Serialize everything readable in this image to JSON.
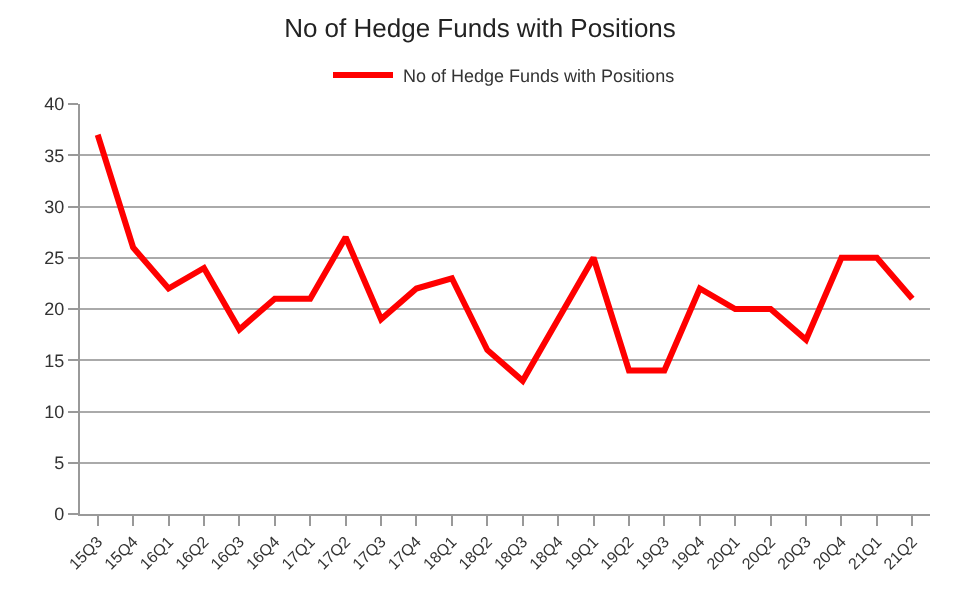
{
  "chart_data": {
    "type": "line",
    "title": "No of Hedge Funds with Positions",
    "categories": [
      "15Q3",
      "15Q4",
      "16Q1",
      "16Q2",
      "16Q3",
      "16Q4",
      "17Q1",
      "17Q2",
      "17Q3",
      "17Q4",
      "18Q1",
      "18Q2",
      "18Q3",
      "18Q4",
      "19Q1",
      "19Q2",
      "19Q3",
      "19Q4",
      "20Q1",
      "20Q2",
      "20Q3",
      "20Q4",
      "21Q1",
      "21Q2"
    ],
    "series": [
      {
        "name": "No of Hedge Funds with Positions",
        "color": "#ff0000",
        "values": [
          37,
          26,
          22,
          24,
          18,
          21,
          21,
          27,
          19,
          22,
          23,
          16,
          13,
          19,
          25,
          14,
          14,
          22,
          20,
          20,
          17,
          25,
          25,
          21
        ]
      }
    ],
    "ylim": [
      0,
      40
    ],
    "yticks": [
      0,
      5,
      10,
      15,
      20,
      25,
      30,
      35,
      40
    ],
    "grid": "y",
    "legend": "top",
    "marker": "none",
    "line_style": "solid"
  }
}
